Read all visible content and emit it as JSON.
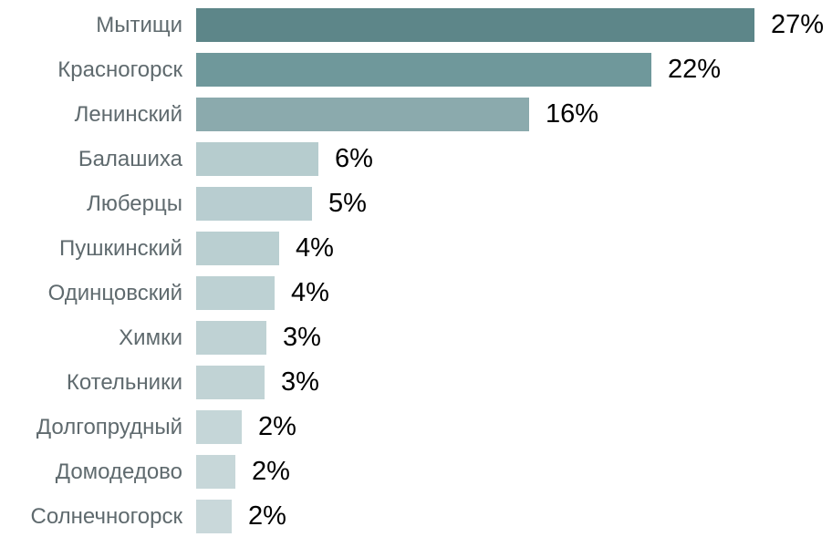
{
  "chart_data": {
    "type": "bar",
    "orientation": "horizontal",
    "title": "",
    "xlabel": "",
    "ylabel": "",
    "grid": false,
    "legend": false,
    "xlim": [
      0,
      30.7
    ],
    "categories": [
      "Мытищи",
      "Красногорск",
      "Ленинский",
      "Балашиха",
      "Люберцы",
      "Пушкинский",
      "Одинцовский",
      "Химки",
      "Котельники",
      "Долгопрудный",
      "Домодедово",
      "Солнечногорск"
    ],
    "values": [
      27,
      22,
      16,
      6,
      5,
      4,
      4,
      3,
      3,
      2,
      2,
      2
    ],
    "value_labels": [
      "27%",
      "22%",
      "16%",
      "6%",
      "5%",
      "4%",
      "4%",
      "3%",
      "3%",
      "2%",
      "2%",
      "2%"
    ],
    "bar_lengths_estimated_pct": [
      27.0,
      22.0,
      16.1,
      5.9,
      5.6,
      4.0,
      3.8,
      3.4,
      3.3,
      2.2,
      1.9,
      1.7
    ],
    "bar_colors": [
      "#5d8689",
      "#6f989b",
      "#8baaad",
      "#b6ccce",
      "#b8cdd0",
      "#bacfd1",
      "#bdd1d3",
      "#bfd2d4",
      "#c1d3d5",
      "#c5d6d8",
      "#c7d7d9",
      "#c9d8da"
    ],
    "colors": {
      "category_label": "#5f6a6e",
      "value_label": "#000000",
      "background": "#ffffff"
    }
  }
}
